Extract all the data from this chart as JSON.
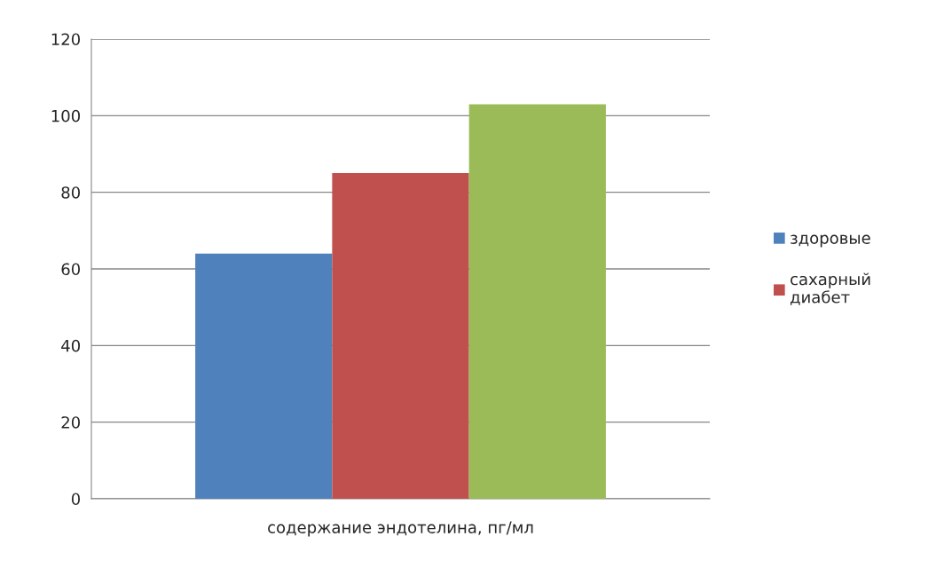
{
  "chart_data": {
    "type": "bar",
    "categories": [
      "содержание эндотелина, пг/мл"
    ],
    "series": [
      {
        "name": "здоровые",
        "color": "#4f81bd",
        "values": [
          64
        ]
      },
      {
        "name": "сахарный диабет",
        "color": "#c0504d",
        "values": [
          85
        ]
      },
      {
        "color": "#9bbb59",
        "values": [
          103
        ]
      }
    ],
    "ylim": [
      0,
      120
    ],
    "yticks": [
      0,
      20,
      40,
      60,
      80,
      100,
      120
    ],
    "grid": "y",
    "legend": "right"
  }
}
